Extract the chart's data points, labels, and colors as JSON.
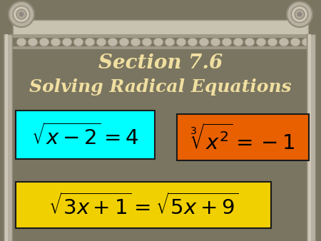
{
  "title_line1": "Section 7.6",
  "title_line2": "Solving Radical Equations",
  "title_color": "#f0dfa0",
  "bg_color": "#7a7560",
  "box1_color": "#00ffff",
  "box2_color": "#e86000",
  "box3_color": "#f0d000",
  "box1_expr": "$\\sqrt{x-2} = 4$",
  "box2_expr": "$\\sqrt[3]{x^2} = -1$",
  "box3_expr": "$\\sqrt{3x+1} = \\sqrt{5x+9}$",
  "pillar_bg": "#b0aa98",
  "pillar_dark": "#989080",
  "pillar_light": "#d0c8b8",
  "scroll_color": "#c8c0b0"
}
